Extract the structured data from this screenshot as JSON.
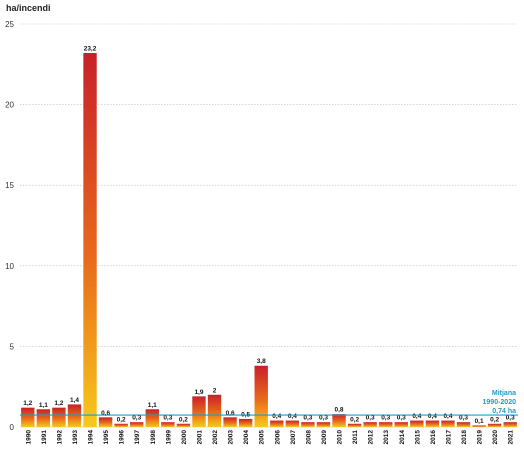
{
  "chart_data": {
    "type": "bar",
    "title": "",
    "xlabel": "",
    "ylabel": "ha/incendi",
    "ylim": [
      0,
      25
    ],
    "yticks": [
      0,
      5,
      10,
      15,
      20,
      25
    ],
    "grid": true,
    "categories": [
      "1990",
      "1991",
      "1992",
      "1993",
      "1994",
      "1995",
      "1996",
      "1997",
      "1998",
      "1999",
      "2000",
      "2001",
      "2002",
      "2003",
      "2004",
      "2005",
      "2006",
      "2007",
      "2008",
      "2009",
      "2010",
      "2011",
      "2012",
      "2013",
      "2014",
      "2015",
      "2016",
      "2017",
      "2018",
      "2019",
      "2020",
      "2021"
    ],
    "values": [
      1.2,
      1.1,
      1.2,
      1.4,
      23.2,
      0.6,
      0.2,
      0.3,
      1.1,
      0.3,
      0.2,
      1.9,
      2,
      0.6,
      0.5,
      3.8,
      0.4,
      0.4,
      0.3,
      0.3,
      0.8,
      0.2,
      0.3,
      0.3,
      0.3,
      0.4,
      0.4,
      0.4,
      0.3,
      0.1,
      0.2,
      0.3
    ],
    "value_labels": [
      "1,2",
      "1,1",
      "1,2",
      "1,4",
      "23,2",
      "0,6",
      "0,2",
      "0,3",
      "1,1",
      "0,3",
      "0,2",
      "1,9",
      "2",
      "0,6",
      "0,5",
      "3,8",
      "0,4",
      "0,4",
      "0,3",
      "0,3",
      "0,8",
      "0,2",
      "0,3",
      "0,3",
      "0,3",
      "0,4",
      "0,4",
      "0,4",
      "0,3",
      "0,1",
      "0,2",
      "0,3"
    ],
    "reference_line": {
      "value": 0.74,
      "label_line1": "Mitjana",
      "label_line2": "1990-2020",
      "label_line3": "0,74 ha",
      "color": "#1a9bd1"
    },
    "colors": {
      "bar_top": "#c8202a",
      "bar_bottom": "#f7c91a",
      "grid": "#bdbdbd"
    }
  }
}
